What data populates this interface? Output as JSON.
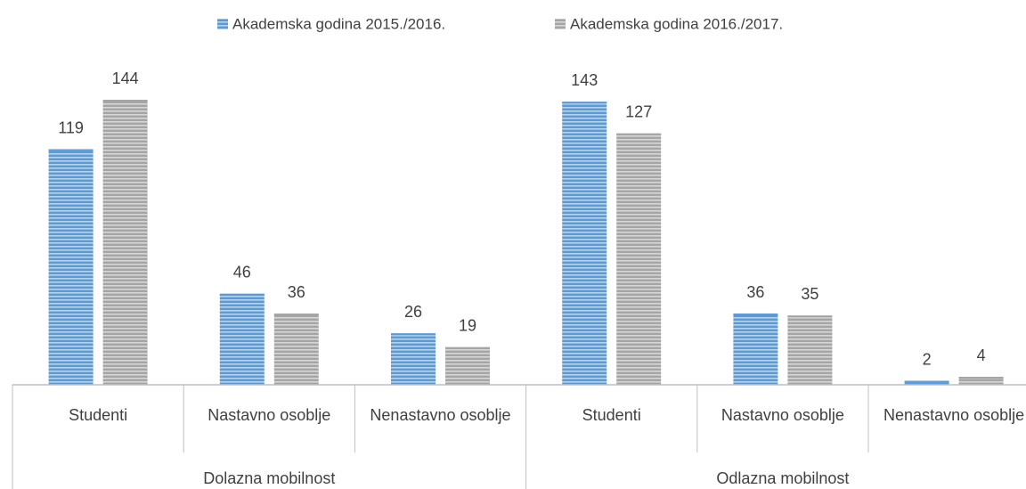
{
  "chart_data": {
    "type": "bar",
    "categories": [
      "Studenti",
      "Nastavno osoblje",
      "Nenastavno osoblje",
      "Studenti",
      "Nastavno osoblje",
      "Nenastavno osoblje"
    ],
    "groups": [
      "Dolazna mobilnost",
      "Odlazna mobilnost"
    ],
    "series": [
      {
        "name": "Akademska godina 2015./2016.",
        "color": "#5b9bd5",
        "values": [
          119,
          46,
          26,
          143,
          36,
          2
        ]
      },
      {
        "name": "Akademska godina 2016./2017.",
        "color": "#a5a5a5",
        "values": [
          144,
          36,
          19,
          127,
          35,
          4
        ]
      }
    ],
    "legend": "top"
  }
}
